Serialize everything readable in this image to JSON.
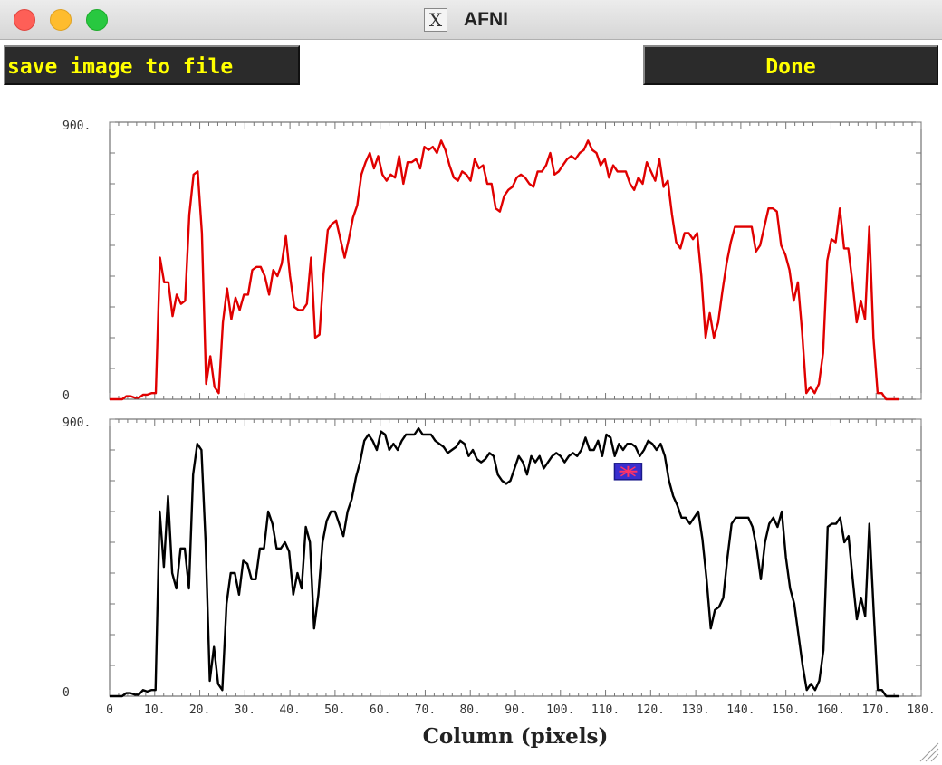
{
  "window": {
    "title": "AFNI",
    "app_icon": "x11-icon"
  },
  "toolbar": {
    "save_label": "save image to file",
    "done_label": "Done"
  },
  "colors": {
    "top_series": "#e00000",
    "bottom_series": "#000000",
    "button_bg": "#2b2b2b",
    "button_text": "#ffff00",
    "marker_fill": "#3a2fd0",
    "marker_glyph": "#ff3366"
  },
  "chart_data": [
    {
      "type": "line",
      "title": "",
      "xlabel": "",
      "ylabel": "",
      "xlim": [
        0,
        180
      ],
      "ylim": [
        0,
        900
      ],
      "ytick_labels": [
        "900.",
        "0"
      ],
      "grid": false,
      "series": [
        {
          "color": "#e00000",
          "values": [
            0,
            0,
            0,
            0,
            10,
            10,
            5,
            5,
            15,
            15,
            20,
            20,
            460,
            380,
            380,
            270,
            340,
            310,
            320,
            600,
            730,
            740,
            540,
            50,
            140,
            40,
            20,
            250,
            360,
            260,
            330,
            290,
            340,
            340,
            420,
            430,
            430,
            400,
            340,
            420,
            400,
            440,
            530,
            400,
            300,
            290,
            290,
            310,
            460,
            200,
            210,
            410,
            550,
            570,
            580,
            520,
            460,
            520,
            590,
            630,
            730,
            770,
            800,
            750,
            790,
            730,
            710,
            730,
            720,
            790,
            700,
            770,
            770,
            780,
            750,
            820,
            810,
            820,
            800,
            840,
            810,
            760,
            720,
            710,
            740,
            730,
            710,
            780,
            750,
            760,
            700,
            700,
            620,
            610,
            660,
            680,
            690,
            720,
            730,
            720,
            700,
            690,
            740,
            740,
            760,
            800,
            730,
            740,
            760,
            780,
            790,
            780,
            800,
            810,
            840,
            810,
            800,
            760,
            780,
            720,
            760,
            740,
            740,
            740,
            700,
            680,
            720,
            700,
            770,
            740,
            710,
            780,
            690,
            710,
            600,
            510,
            490,
            540,
            540,
            520,
            540,
            400,
            200,
            280,
            200,
            250,
            350,
            440,
            510,
            560,
            560,
            560,
            560,
            560,
            480,
            500,
            560,
            620,
            620,
            610,
            500,
            470,
            420,
            320,
            380,
            220,
            20,
            40,
            20,
            50,
            150,
            450,
            520,
            510,
            620,
            490,
            490,
            380,
            250,
            320,
            260,
            560,
            200,
            20,
            20,
            0,
            0,
            0,
            0
          ]
        },
        {
          "color": "#000000",
          "values": [
            0,
            0,
            0,
            0,
            10,
            10,
            5,
            5,
            20,
            15,
            20,
            20,
            600,
            420,
            650,
            400,
            350,
            480,
            480,
            350,
            720,
            820,
            800,
            500,
            50,
            160,
            40,
            20,
            300,
            400,
            400,
            330,
            440,
            430,
            380,
            380,
            480,
            480,
            600,
            560,
            480,
            480,
            500,
            470,
            330,
            400,
            350,
            550,
            500,
            220,
            330,
            500,
            570,
            600,
            600,
            560,
            520,
            600,
            640,
            710,
            760,
            830,
            850,
            830,
            800,
            860,
            850,
            800,
            820,
            800,
            830,
            850,
            850,
            850,
            870,
            850,
            850,
            850,
            830,
            820,
            810,
            790,
            800,
            810,
            830,
            820,
            780,
            800,
            770,
            760,
            770,
            790,
            780,
            720,
            700,
            690,
            700,
            740,
            780,
            760,
            720,
            780,
            760,
            780,
            740,
            760,
            780,
            790,
            780,
            760,
            780,
            790,
            780,
            800,
            840,
            800,
            800,
            830,
            780,
            850,
            840,
            780,
            820,
            800,
            820,
            820,
            810,
            780,
            800,
            830,
            820,
            800,
            820,
            780,
            700,
            650,
            620,
            580,
            580,
            560,
            580,
            600,
            510,
            380,
            220,
            280,
            290,
            320,
            450,
            560,
            580,
            580,
            580,
            580,
            550,
            480,
            380,
            500,
            560,
            580,
            550,
            600,
            450,
            350,
            300,
            200,
            100,
            20,
            40,
            20,
            50,
            150,
            550,
            560,
            560,
            580,
            500,
            520,
            380,
            250,
            320,
            260,
            560,
            280,
            20,
            20,
            0,
            0,
            0,
            0
          ]
        }
      ]
    },
    {
      "type": "line",
      "title": "",
      "xlabel": "Column (pixels)",
      "ylabel": "",
      "xlim": [
        0,
        180
      ],
      "ylim": [
        0,
        900
      ],
      "ytick_labels": [
        "900.",
        "0"
      ],
      "xtick_labels": [
        "0",
        "10.",
        "20.",
        "30.",
        "40.",
        "50.",
        "60.",
        "70.",
        "80.",
        "90.",
        "100.",
        "110.",
        "120.",
        "130.",
        "140.",
        "150.",
        "160.",
        "170.",
        "180."
      ],
      "grid": false,
      "series": [
        {
          "color": "#000000",
          "values": [
            0,
            0,
            0,
            0,
            10,
            10,
            5,
            5,
            20,
            15,
            20,
            20,
            600,
            420,
            650,
            400,
            350,
            480,
            480,
            350,
            720,
            820,
            800,
            500,
            50,
            160,
            40,
            20,
            300,
            400,
            400,
            330,
            440,
            430,
            380,
            380,
            480,
            480,
            600,
            560,
            480,
            480,
            500,
            470,
            330,
            400,
            350,
            550,
            500,
            220,
            330,
            500,
            570,
            600,
            600,
            560,
            520,
            600,
            640,
            710,
            760,
            830,
            850,
            830,
            800,
            860,
            850,
            800,
            820,
            800,
            830,
            850,
            850,
            850,
            870,
            850,
            850,
            850,
            830,
            820,
            810,
            790,
            800,
            810,
            830,
            820,
            780,
            800,
            770,
            760,
            770,
            790,
            780,
            720,
            700,
            690,
            700,
            740,
            780,
            760,
            720,
            780,
            760,
            780,
            740,
            760,
            780,
            790,
            780,
            760,
            780,
            790,
            780,
            800,
            840,
            800,
            800,
            830,
            780,
            850,
            840,
            780,
            820,
            800,
            820,
            820,
            810,
            780,
            800,
            830,
            820,
            800,
            820,
            780,
            700,
            650,
            620,
            580,
            580,
            560,
            580,
            600,
            510,
            380,
            220,
            280,
            290,
            320,
            450,
            560,
            580,
            580,
            580,
            580,
            550,
            480,
            380,
            500,
            560,
            580,
            550,
            600,
            450,
            350,
            300,
            200,
            100,
            20,
            40,
            20,
            50,
            150,
            550,
            560,
            560,
            580,
            500,
            520,
            380,
            250,
            320,
            260,
            560,
            280,
            20,
            20,
            0,
            0,
            0,
            0
          ]
        }
      ],
      "marker": {
        "x": 115,
        "y": 730,
        "icon": "crosshair-marker-icon"
      }
    }
  ]
}
